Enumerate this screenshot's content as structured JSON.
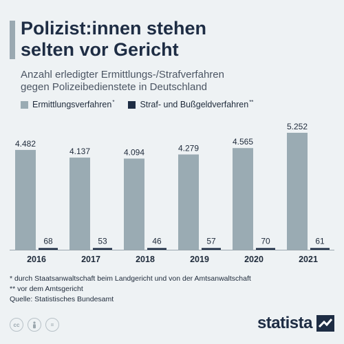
{
  "header": {
    "title_line1": "Polizist:innen stehen",
    "title_line2": "selten vor Gericht",
    "subtitle_line1": "Anzahl erledigter Ermittlungs-/Strafverfahren",
    "subtitle_line2": "gegen Polizeibedienstete in Deutschland"
  },
  "legend": {
    "series1_label": "Ermittlungsverfahren",
    "series1_mark": "*",
    "series2_label": "Straf- und Bußgeldverfahren",
    "series2_mark": "**"
  },
  "chart_data": {
    "type": "bar",
    "categories": [
      "2016",
      "2017",
      "2018",
      "2019",
      "2020",
      "2021"
    ],
    "series": [
      {
        "name": "Ermittlungsverfahren",
        "color": "#9aabb3",
        "values": [
          4482,
          4137,
          4094,
          4279,
          4565,
          5252
        ],
        "labels": [
          "4.482",
          "4.137",
          "4.094",
          "4.279",
          "4.565",
          "5.252"
        ]
      },
      {
        "name": "Straf- und Bußgeldverfahren",
        "color": "#1e2d44",
        "values": [
          68,
          53,
          46,
          57,
          70,
          61
        ],
        "labels": [
          "68",
          "53",
          "46",
          "57",
          "70",
          "61"
        ]
      }
    ],
    "ylim": [
      0,
      5252
    ],
    "grid": false,
    "legend_position": "top-left"
  },
  "footnotes": {
    "note1": "*  durch Staatsanwaltschaft beim Landgericht und von der Amtsanwaltschaft",
    "note2": "** vor dem Amtsgericht",
    "source": "Quelle: Statistisches Bundesamt"
  },
  "footer": {
    "brand": "statista",
    "license_icons": [
      "cc",
      "person",
      "="
    ]
  }
}
